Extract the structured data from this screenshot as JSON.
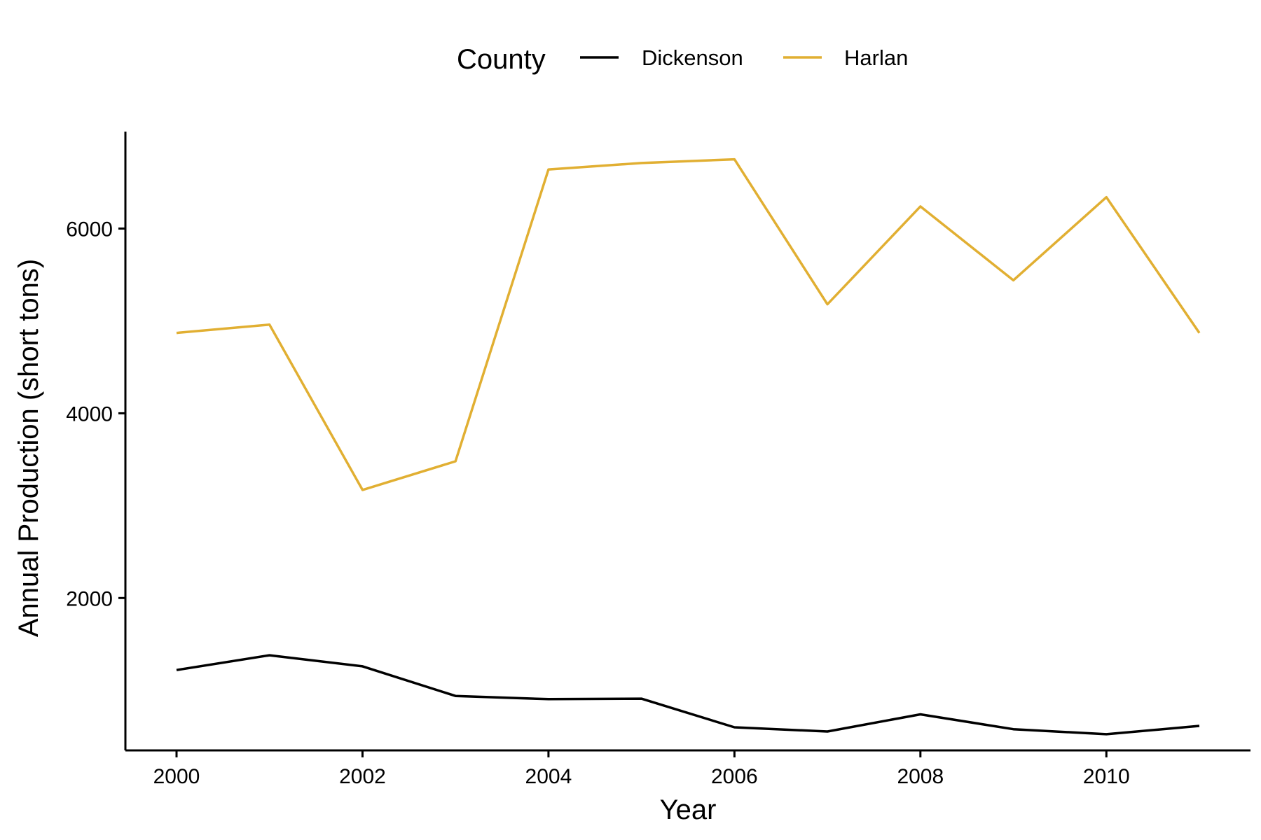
{
  "chart_data": {
    "type": "line",
    "xlabel": "Year",
    "ylabel": "Annual Production (short tons)",
    "x": [
      2000,
      2001,
      2002,
      2003,
      2004,
      2005,
      2006,
      2007,
      2008,
      2009,
      2010,
      2011
    ],
    "xlim": [
      1999.45,
      2011.55
    ],
    "ylim": [
      350,
      7050
    ],
    "x_ticks": [
      2000,
      2002,
      2004,
      2006,
      2008,
      2010
    ],
    "y_ticks": [
      2000,
      4000,
      6000
    ],
    "grid": false,
    "legend": {
      "title": "County",
      "position": "top"
    },
    "series": [
      {
        "name": "Dickenson",
        "color": "#000000",
        "values": [
          1220,
          1380,
          1260,
          940,
          905,
          910,
          600,
          555,
          740,
          580,
          525,
          615
        ]
      },
      {
        "name": "Harlan",
        "color": "#E1AF32",
        "values": [
          4870,
          4960,
          3170,
          3480,
          6640,
          6710,
          6750,
          5180,
          6240,
          5440,
          6340,
          4870
        ]
      }
    ]
  }
}
